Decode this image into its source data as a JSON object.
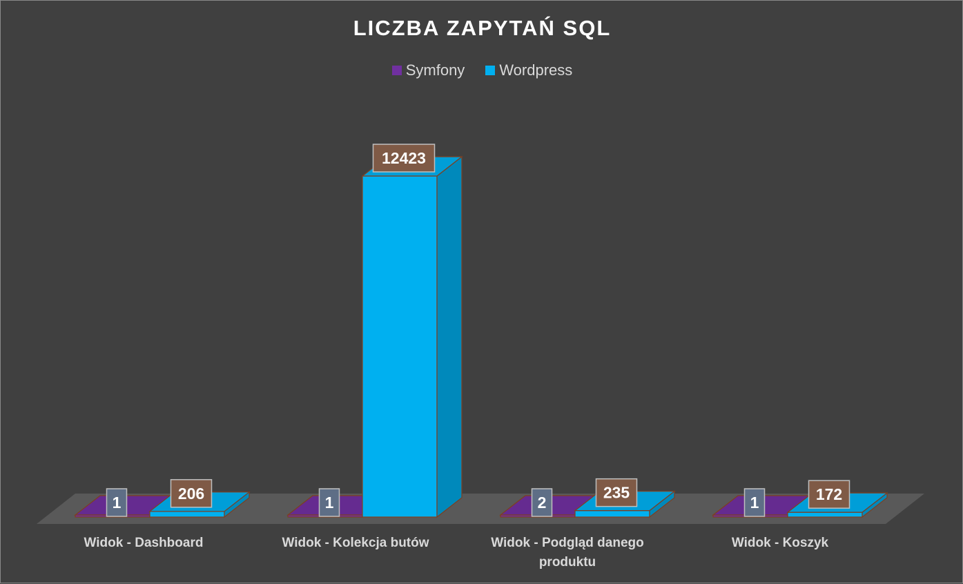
{
  "chart_data": {
    "type": "bar",
    "title": "LICZBA ZAPYTAŃ SQL",
    "categories": [
      "Widok - Dashboard",
      "Widok - Kolekcja butów",
      "Widok - Podgląd danego produktu",
      "Widok - Koszyk"
    ],
    "series": [
      {
        "name": "Symfony",
        "values": [
          1,
          1,
          2,
          1
        ],
        "color": "#7030A0"
      },
      {
        "name": "Wordpress",
        "values": [
          206,
          12423,
          235,
          172
        ],
        "color": "#00B0F0"
      }
    ],
    "data_label_colors": {
      "Symfony": "#5E6E86",
      "Wordpress": "#7F5A46"
    },
    "ylim": [
      0,
      12423
    ],
    "grid": false,
    "legend_position": "top",
    "style": "3d-column"
  }
}
